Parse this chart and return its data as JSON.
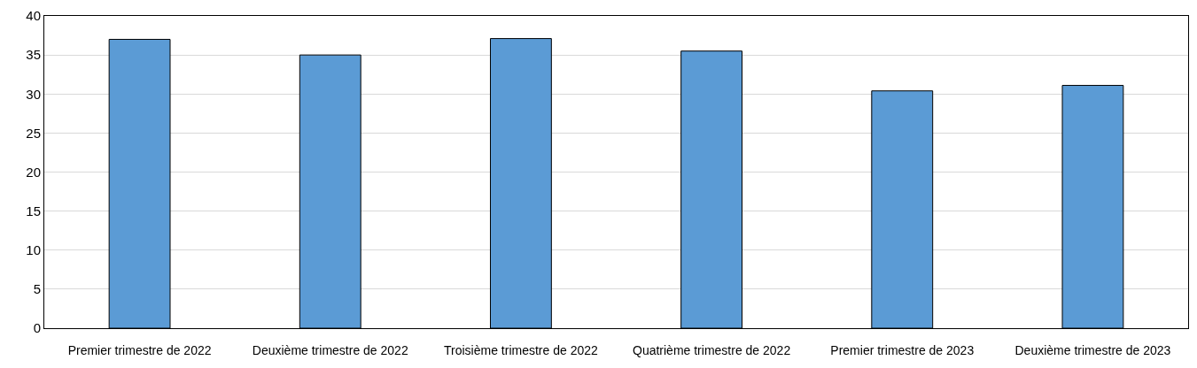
{
  "chart_data": {
    "type": "bar",
    "categories": [
      "Premier trimestre de 2022",
      "Deuxième trimestre de 2022",
      "Troisième trimestre de 2022",
      "Quatrième trimestre de 2022",
      "Premier trimestre de 2023",
      "Deuxième trimestre de 2023"
    ],
    "values": [
      37.0,
      35.0,
      37.1,
      35.5,
      30.4,
      31.1
    ],
    "color": "#5b9bd5",
    "ylim": [
      0,
      40
    ],
    "yticks": [
      0,
      5,
      10,
      15,
      20,
      25,
      30,
      35,
      40
    ],
    "grid": "y"
  }
}
